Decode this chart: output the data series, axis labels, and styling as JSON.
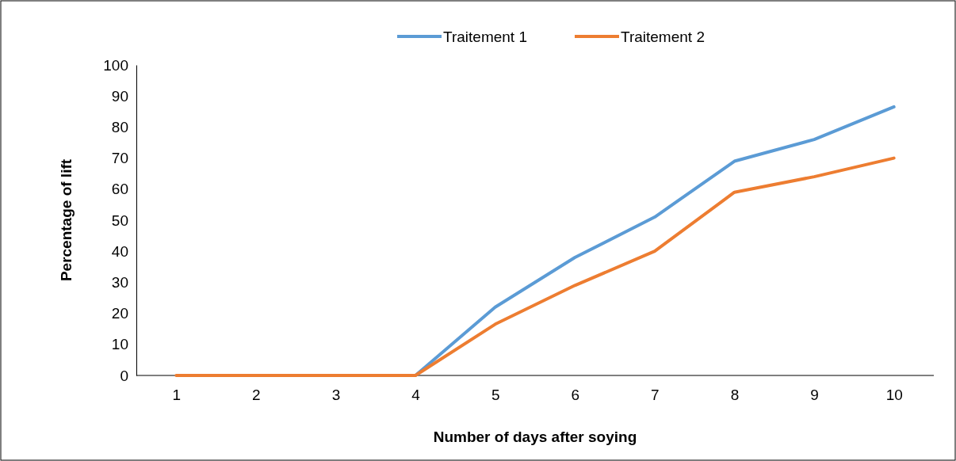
{
  "chart_data": {
    "type": "line",
    "xlabel": "Number of days after soying",
    "ylabel": "Percentage of lift",
    "categories": [
      "1",
      "2",
      "3",
      "4",
      "5",
      "6",
      "7",
      "8",
      "9",
      "10"
    ],
    "series": [
      {
        "name": "Traitement 1",
        "color": "#5b9bd5",
        "values": [
          null,
          null,
          null,
          0,
          22,
          38,
          51,
          69,
          76,
          86.5
        ]
      },
      {
        "name": "Traitement 2",
        "color": "#ed7d31",
        "values": [
          0,
          0,
          0,
          0,
          16.5,
          29,
          40,
          59,
          64,
          70
        ]
      }
    ],
    "ylim": [
      0,
      100
    ],
    "yticks": [
      0,
      10,
      20,
      30,
      40,
      50,
      60,
      70,
      80,
      90,
      100
    ],
    "grid": false,
    "legend": "top",
    "marker": "none",
    "line_style": "solid"
  }
}
